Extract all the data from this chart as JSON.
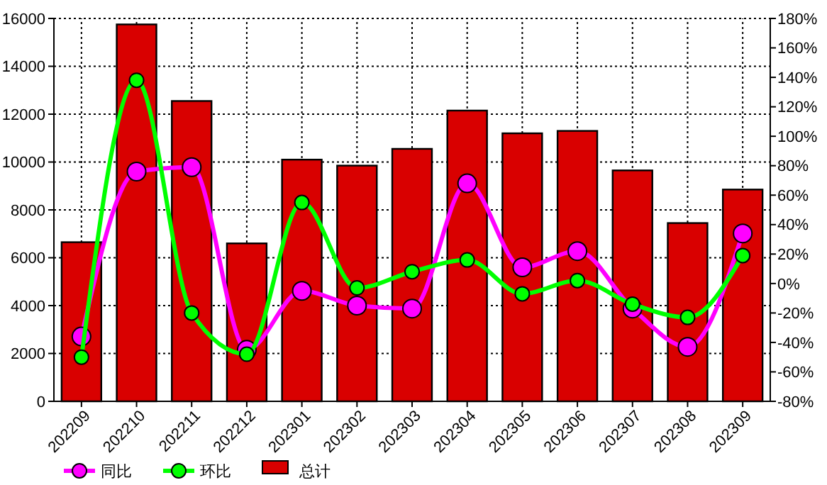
{
  "chart_data": {
    "type": "bar",
    "categories": [
      "202209",
      "202210",
      "202211",
      "202212",
      "202301",
      "202302",
      "202303",
      "202304",
      "202305",
      "202306",
      "202307",
      "202308",
      "202309"
    ],
    "series": [
      {
        "name": "同比",
        "type": "line",
        "axis": "y2",
        "color": "#ff00ff",
        "values": [
          -36,
          76,
          79,
          -45,
          -5,
          -15,
          -17,
          68,
          11,
          22,
          -17,
          -43,
          34
        ]
      },
      {
        "name": "环比",
        "type": "line",
        "axis": "y2",
        "color": "#00ff00",
        "values": [
          -50,
          138,
          -20,
          -48,
          55,
          -3,
          8,
          16,
          -7,
          2,
          -14,
          -23,
          19
        ]
      },
      {
        "name": "总计",
        "color": "#d90000",
        "values": [
          6650,
          15750,
          12550,
          6600,
          10100,
          9850,
          10550,
          12150,
          11200,
          11300,
          9650,
          7450,
          8850
        ]
      }
    ],
    "ylim": [
      0,
      16000
    ],
    "yticks": [
      0,
      2000,
      4000,
      6000,
      8000,
      10000,
      12000,
      14000,
      16000
    ],
    "y2lim": [
      -80,
      180
    ],
    "y2ticks": [
      {
        "value": -80,
        "label": "-80%"
      },
      {
        "value": -60,
        "label": "-60%"
      },
      {
        "value": -40,
        "label": "-40%"
      },
      {
        "value": -20,
        "label": "-20%"
      },
      {
        "value": 0,
        "label": "0%"
      },
      {
        "value": 20,
        "label": "20%"
      },
      {
        "value": 40,
        "label": "40%"
      },
      {
        "value": 60,
        "label": "60%"
      },
      {
        "value": 80,
        "label": "80%"
      },
      {
        "value": 100,
        "label": "100%"
      },
      {
        "value": 120,
        "label": "120%"
      },
      {
        "value": 140,
        "label": "140%"
      },
      {
        "value": 160,
        "label": "160%"
      },
      {
        "value": 180,
        "label": "180%"
      }
    ],
    "grid": true,
    "legend": "bottom left",
    "marker": "circle"
  }
}
